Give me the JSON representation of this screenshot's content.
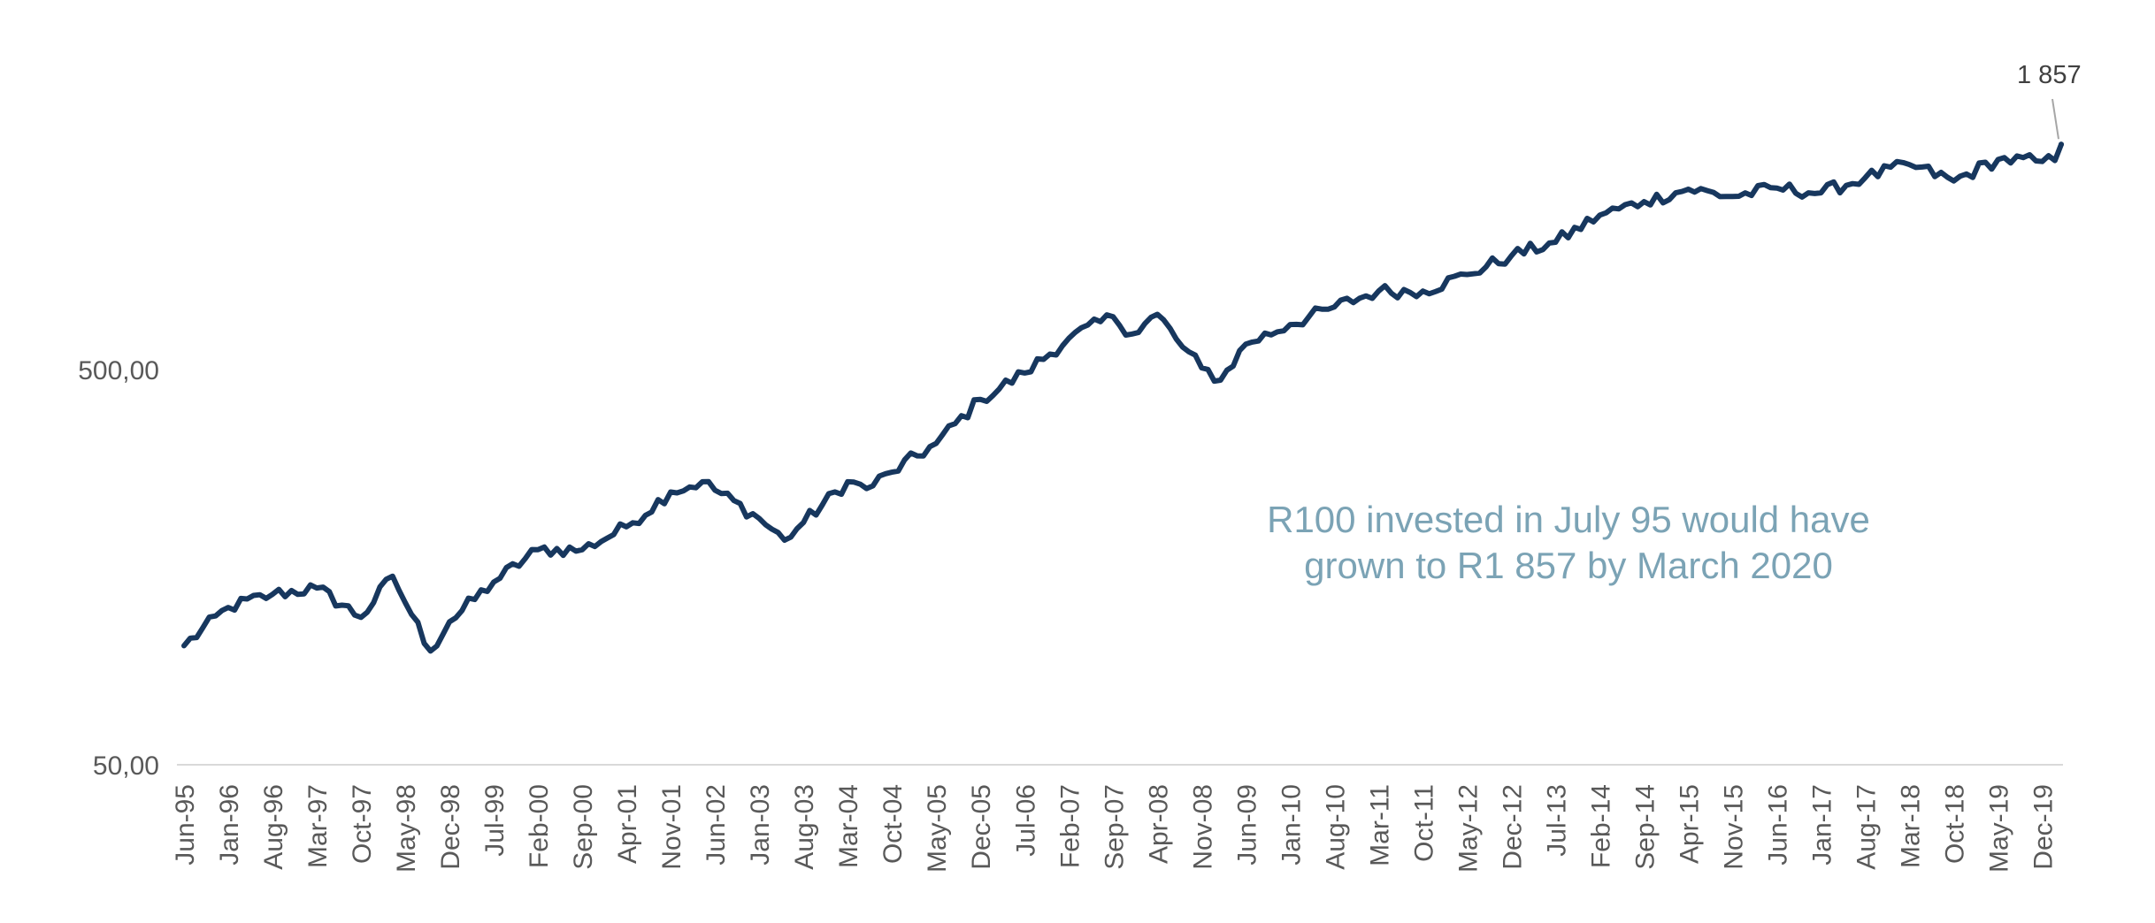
{
  "chart_data": {
    "type": "line",
    "title": "",
    "xlabel": "",
    "ylabel": "",
    "y_scale": "log",
    "ylim": [
      50,
      2000
    ],
    "y_ticks": [
      {
        "value": 50,
        "label": "50,00"
      },
      {
        "value": 500,
        "label": "500,00"
      }
    ],
    "grid": false,
    "legend": "none",
    "x_start": "Jun-95",
    "x_end": "Mar-20",
    "x_tick_labels": [
      "Jun-95",
      "Jan-96",
      "Aug-96",
      "Mar-97",
      "Oct-97",
      "May-98",
      "Dec-98",
      "Jul-99",
      "Feb-00",
      "Sep-00",
      "Apr-01",
      "Nov-01",
      "Jun-02",
      "Jan-03",
      "Aug-03",
      "Mar-04",
      "Oct-04",
      "May-05",
      "Dec-05",
      "Jul-06",
      "Feb-07",
      "Sep-07",
      "Apr-08",
      "Nov-08",
      "Jun-09",
      "Jan-10",
      "Aug-10",
      "Mar-11",
      "Oct-11",
      "May-12",
      "Dec-12",
      "Jul-13",
      "Feb-14",
      "Sep-14",
      "Apr-15",
      "Nov-15",
      "Jun-16",
      "Jan-17",
      "Aug-17",
      "Mar-18",
      "Oct-18",
      "May-19",
      "Dec-19"
    ],
    "series": [
      {
        "color": "#17375E",
        "points": [
          [
            "Jun-95",
            100
          ],
          [
            "Jan-96",
            125
          ],
          [
            "Aug-96",
            135
          ],
          [
            "Mar-97",
            140
          ],
          [
            "Oct-97",
            118
          ],
          [
            "Mar-98",
            150
          ],
          [
            "Jun-98",
            120
          ],
          [
            "Sep-98",
            97
          ],
          [
            "Dec-98",
            115
          ],
          [
            "Jul-99",
            145
          ],
          [
            "Feb-00",
            175
          ],
          [
            "Sep-00",
            175
          ],
          [
            "Apr-01",
            200
          ],
          [
            "Nov-01",
            245
          ],
          [
            "Apr-02",
            260
          ],
          [
            "Jan-03",
            210
          ],
          [
            "May-03",
            185
          ],
          [
            "Aug-03",
            205
          ],
          [
            "Mar-04",
            260
          ],
          [
            "Jun-04",
            250
          ],
          [
            "Oct-04",
            275
          ],
          [
            "May-05",
            325
          ],
          [
            "Dec-05",
            420
          ],
          [
            "Jul-06",
            490
          ],
          [
            "Feb-07",
            600
          ],
          [
            "Sep-07",
            680
          ],
          [
            "Dec-07",
            615
          ],
          [
            "Apr-08",
            690
          ],
          [
            "Aug-08",
            570
          ],
          [
            "Nov-08",
            505
          ],
          [
            "Feb-09",
            470
          ],
          [
            "Jun-09",
            580
          ],
          [
            "Jan-10",
            650
          ],
          [
            "Aug-10",
            720
          ],
          [
            "Mar-11",
            790
          ],
          [
            "Oct-11",
            790
          ],
          [
            "May-12",
            870
          ],
          [
            "Dec-12",
            970
          ],
          [
            "Jul-13",
            1050
          ],
          [
            "Feb-14",
            1230
          ],
          [
            "Sep-14",
            1330
          ],
          [
            "Apr-15",
            1430
          ],
          [
            "Nov-15",
            1370
          ],
          [
            "Jun-16",
            1440
          ],
          [
            "Jan-17",
            1400
          ],
          [
            "Aug-17",
            1530
          ],
          [
            "Mar-18",
            1650
          ],
          [
            "Oct-18",
            1500
          ],
          [
            "May-19",
            1700
          ],
          [
            "Dec-19",
            1680
          ],
          [
            "Feb-20",
            1690
          ],
          [
            "Mar-20",
            1857
          ]
        ]
      }
    ],
    "end_label": "1 857",
    "annotation": {
      "lines": [
        "R100 invested in July 95 would have",
        "grown to R1 857 by March 2020"
      ],
      "color": "#7BA3B5"
    },
    "axis_color": "#D9D9D9"
  }
}
